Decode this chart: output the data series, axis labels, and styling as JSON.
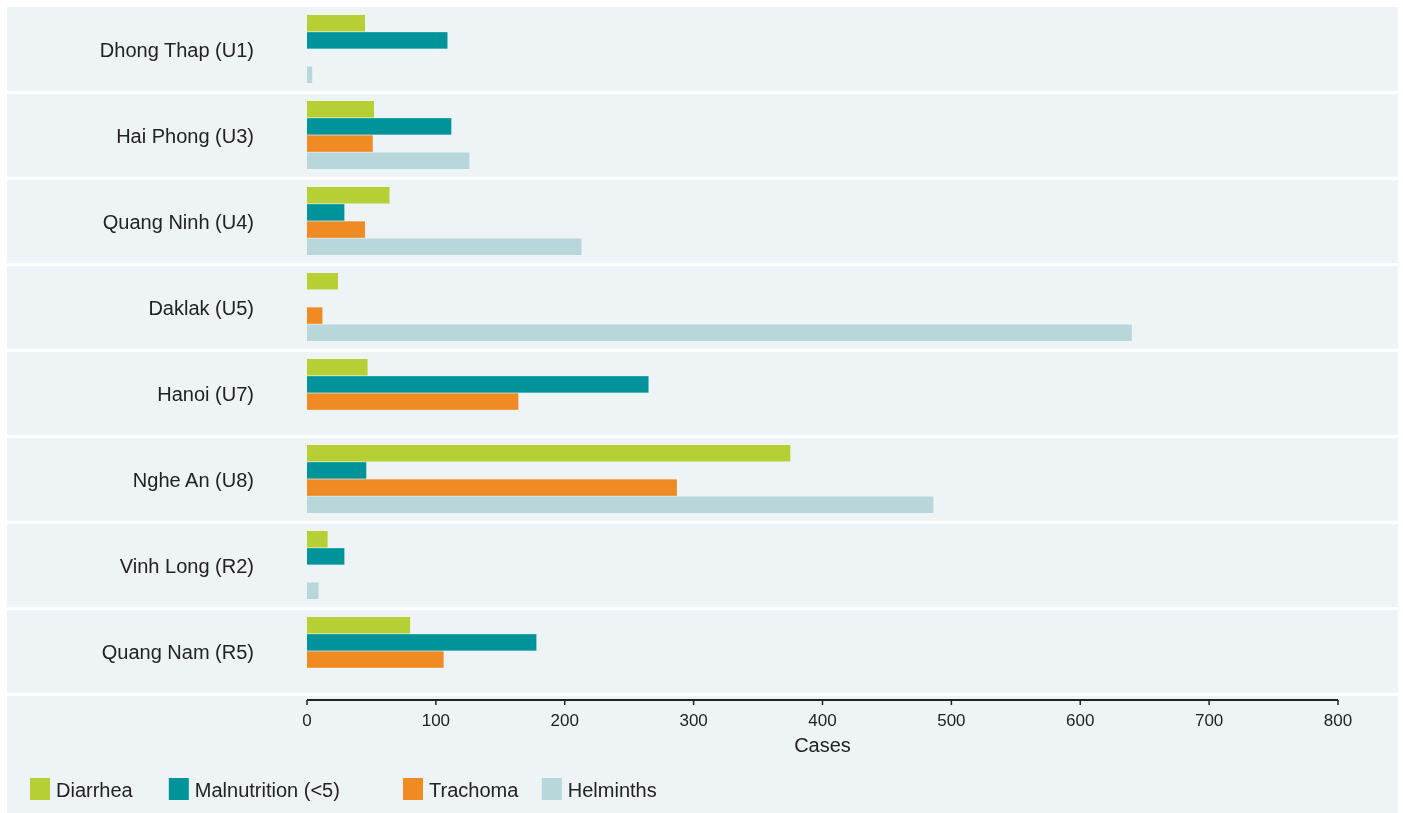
{
  "chart_data": {
    "type": "bar",
    "orientation": "horizontal",
    "xlabel": "Cases",
    "categories": [
      "Dhong Thap (U1)",
      "Hai Phong (U3)",
      "Quang Ninh (U4)",
      "Daklak (U5)",
      "Hanoi (U7)",
      "Nghe An (U8)",
      "Vinh Long (R2)",
      "Quang Nam (R5)"
    ],
    "series": [
      {
        "name": "Diarrhea",
        "color": "#b5cf35",
        "values": [
          45,
          52,
          64,
          24,
          47,
          375,
          16,
          80
        ]
      },
      {
        "name": "Malnutrition (<5)",
        "color": "#00939a",
        "values": [
          109,
          112,
          29,
          null,
          265,
          46,
          29,
          178
        ]
      },
      {
        "name": "Trachoma",
        "color": "#f08a23",
        "values": [
          null,
          51,
          45,
          12,
          164,
          287,
          null,
          106
        ]
      },
      {
        "name": "Helminths",
        "color": "#b7d7da",
        "values": [
          4,
          126,
          213,
          640,
          null,
          486,
          9,
          null
        ]
      }
    ],
    "xlim": [
      0,
      800
    ],
    "xticks": [
      0,
      100,
      200,
      300,
      400,
      500,
      600,
      700,
      800
    ],
    "grid": false,
    "legend": "bottom"
  }
}
